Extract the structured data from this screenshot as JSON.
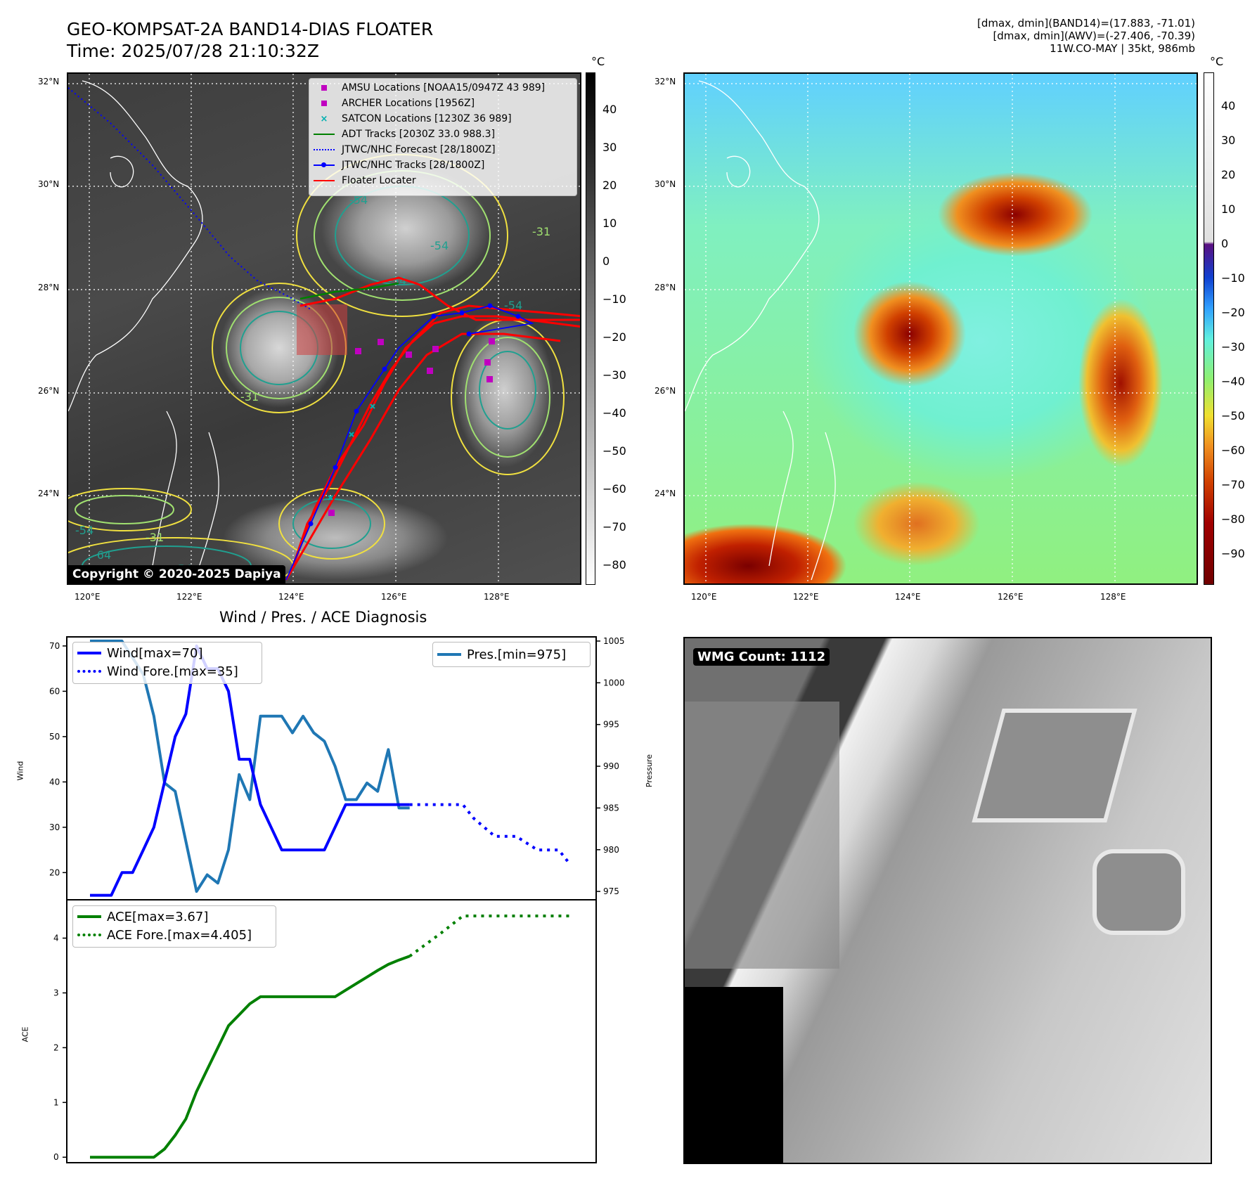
{
  "header": {
    "title_line1": "GEO-KOMPSAT-2A BAND14-DIAS FLOATER",
    "title_line2": "Time: 2025/07/28 21:10:32Z",
    "info_line1": "[dmax, dmin](BAND14)=(17.883, -71.01)",
    "info_line2": "[dmax, dmin](AWV)=(-27.406, -70.39)",
    "info_line3": "11W.CO-MAY | 35kt, 986mb"
  },
  "map_axes": {
    "lat_labels": [
      "32°N",
      "30°N",
      "28°N",
      "26°N",
      "24°N"
    ],
    "lon_labels": [
      "120°E",
      "122°E",
      "124°E",
      "126°E",
      "128°E"
    ]
  },
  "ir_panel": {
    "legend": [
      {
        "label": "AMSU Locations [NOAA15/0947Z 43 989]",
        "symbol": "square",
        "color": "#c000c0"
      },
      {
        "label": "ARCHER Locations [1956Z]",
        "symbol": "square",
        "color": "#c000c0"
      },
      {
        "label": "SATCON Locations [1230Z 36 989]",
        "symbol": "x",
        "color": "#00b0b0"
      },
      {
        "label": "ADT Tracks [2030Z 33.0 988.3]",
        "symbol": "line",
        "color": "#008000"
      },
      {
        "label": "JTWC/NHC Forecast [28/1800Z]",
        "symbol": "dotted",
        "color": "#0000ff"
      },
      {
        "label": "JTWC/NHC Tracks [28/1800Z]",
        "symbol": "line-dot",
        "color": "#0000ff"
      },
      {
        "label": "Floater Locater",
        "symbol": "line",
        "color": "#ff0000"
      }
    ],
    "contour_labels": [
      "-54",
      "-54",
      "-54",
      "-31",
      "-31",
      "-54",
      "-31",
      "-64",
      "-54",
      "-54"
    ],
    "copyright": "Copyright © 2020-2025 Dapiya",
    "colorbar_unit": "°C",
    "colorbar_ticks": [
      "40",
      "30",
      "20",
      "10",
      "0",
      "−10",
      "−20",
      "−30",
      "−40",
      "−50",
      "−60",
      "−70",
      "−80"
    ]
  },
  "awv_panel": {
    "colorbar_unit": "°C",
    "colorbar_ticks": [
      "40",
      "30",
      "20",
      "10",
      "0",
      "−10",
      "−20",
      "−30",
      "−40",
      "−50",
      "−60",
      "−70",
      "−80",
      "−90"
    ]
  },
  "wmg_panel": {
    "badge": "WMG Count: 1112"
  },
  "colors": {
    "wind": "#0000ff",
    "pressure": "#1f77b4",
    "ace": "#008000",
    "track_red": "#ff0000"
  },
  "chart_data": [
    {
      "type": "line",
      "title": "Wind / Pres. / ACE Diagnosis",
      "ylabel": "Wind",
      "y2label": "Pressure",
      "ylim": [
        14,
        72
      ],
      "y2lim": [
        974,
        1005.5
      ],
      "yticks": [
        "70",
        "60",
        "50",
        "40",
        "30",
        "20"
      ],
      "y2ticks": [
        "1005",
        "1000",
        "995",
        "990",
        "985",
        "980",
        "975"
      ],
      "series": [
        {
          "name": "Wind[max=70]",
          "axis": "left",
          "style": "solid",
          "color": "#0000ff",
          "x": [
            0,
            2,
            3,
            4,
            5,
            6,
            7,
            8,
            9,
            10,
            11,
            12,
            13,
            14,
            15,
            16,
            17,
            18,
            19,
            20,
            21,
            22,
            23,
            24,
            25,
            26,
            27,
            28,
            29,
            30
          ],
          "values": [
            15,
            15,
            20,
            20,
            25,
            30,
            40,
            50,
            55,
            70,
            65,
            65,
            60,
            45,
            45,
            35,
            30,
            25,
            25,
            25,
            25,
            25,
            30,
            35,
            35,
            35,
            35,
            35,
            35,
            35
          ]
        },
        {
          "name": "Wind Fore.[max=35]",
          "axis": "left",
          "style": "dotted",
          "color": "#0000ff",
          "x": [
            30,
            35,
            36,
            38,
            40,
            42,
            44,
            45
          ],
          "values": [
            35,
            35,
            32,
            28,
            28,
            25,
            25,
            22
          ]
        },
        {
          "name": "Pres.[min=975]",
          "axis": "right",
          "style": "solid",
          "color": "#1f77b4",
          "x": [
            0,
            3,
            5,
            6,
            7,
            8,
            9,
            10,
            11,
            12,
            13,
            14,
            15,
            16,
            17,
            18,
            19,
            20,
            21,
            22,
            23,
            24,
            25,
            26,
            27,
            28,
            29,
            30
          ],
          "values": [
            1005,
            1005,
            1001,
            996,
            988,
            987,
            981,
            975,
            977,
            976,
            980,
            989,
            986,
            996,
            996,
            996,
            994,
            996,
            994,
            993,
            990,
            986,
            986,
            988,
            987,
            992,
            985,
            985
          ]
        }
      ]
    },
    {
      "type": "line",
      "ylabel": "ACE",
      "ylim": [
        -0.1,
        4.7
      ],
      "yticks": [
        "4",
        "3",
        "2",
        "1",
        "0"
      ],
      "series": [
        {
          "name": "ACE[max=3.67]",
          "style": "solid",
          "color": "#008000",
          "x": [
            0,
            2,
            4,
            6,
            7,
            8,
            9,
            10,
            11,
            12,
            13,
            14,
            15,
            16,
            17,
            18,
            19,
            20,
            21,
            22,
            23,
            24,
            25,
            26,
            27,
            28,
            29,
            30
          ],
          "values": [
            0,
            0,
            0,
            0,
            0.15,
            0.4,
            0.7,
            1.2,
            1.6,
            2.0,
            2.4,
            2.6,
            2.8,
            2.93,
            2.93,
            2.93,
            2.93,
            2.93,
            2.93,
            2.93,
            2.93,
            3.05,
            3.17,
            3.29,
            3.41,
            3.52,
            3.6,
            3.67
          ]
        },
        {
          "name": "ACE Fore.[max=4.405]",
          "style": "dotted",
          "color": "#008000",
          "x": [
            30,
            33,
            35,
            40,
            45
          ],
          "values": [
            3.67,
            4.1,
            4.405,
            4.405,
            4.405
          ]
        }
      ]
    }
  ]
}
